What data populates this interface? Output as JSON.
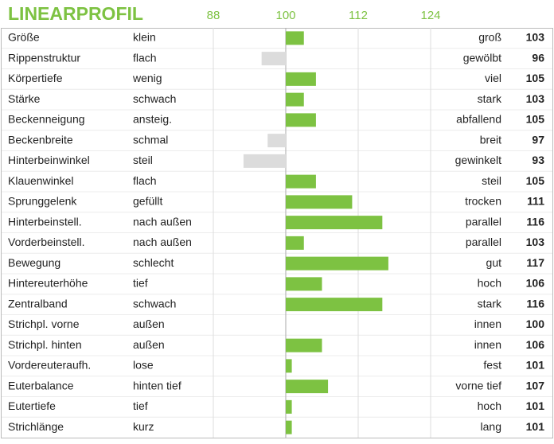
{
  "chart_data": {
    "type": "bar",
    "title": "LINEARPROFIL",
    "categories": [
      "Größe",
      "Rippenstruktur",
      "Körpertiefe",
      "Stärke",
      "Beckenneigung",
      "Beckenbreite",
      "Hinterbeinwinkel",
      "Klauenwinkel",
      "Sprunggelenk",
      "Hinterbeinstell.",
      "Vorderbeinstell.",
      "Bewegung",
      "Hintereuterhöhe",
      "Zentralband",
      "Strichpl. vorne",
      "Strichpl. hinten",
      "Vordereuteraufh.",
      "Euterbalance",
      "Eutertiefe",
      "Strichlänge"
    ],
    "low_labels": [
      "klein",
      "flach",
      "wenig",
      "schwach",
      "ansteig.",
      "schmal",
      "steil",
      "flach",
      "gefüllt",
      "nach außen",
      "nach außen",
      "schlecht",
      "tief",
      "schwach",
      "außen",
      "außen",
      "lose",
      "hinten tief",
      "tief",
      "kurz"
    ],
    "high_labels": [
      "groß",
      "gewölbt",
      "viel",
      "stark",
      "abfallend",
      "breit",
      "gewinkelt",
      "steil",
      "trocken",
      "parallel",
      "parallel",
      "gut",
      "hoch",
      "stark",
      "innen",
      "innen",
      "fest",
      "vorne tief",
      "hoch",
      "lang"
    ],
    "values": [
      103,
      96,
      105,
      103,
      105,
      97,
      93,
      105,
      111,
      116,
      103,
      117,
      106,
      116,
      100,
      106,
      101,
      107,
      101,
      101
    ],
    "xlim": [
      88,
      124
    ],
    "xticks": [
      88,
      100,
      112,
      124
    ],
    "baseline": 100,
    "color_above": "#7dc242",
    "color_below": "#dcdcdc"
  }
}
